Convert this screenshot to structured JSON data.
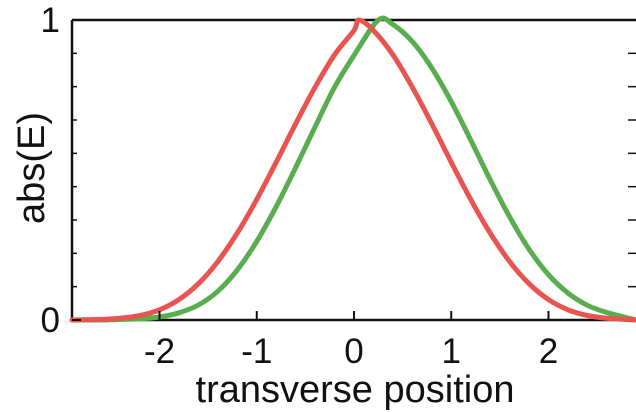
{
  "chart_data": {
    "type": "line",
    "title": "",
    "xlabel": "transverse position",
    "ylabel": "abs(E)",
    "xlim": [
      -2.9,
      2.9
    ],
    "ylim": [
      0,
      1
    ],
    "x_ticks": [
      -2,
      -1,
      0,
      1,
      2
    ],
    "x_tick_labels": [
      "-2",
      "-1",
      "0",
      "1",
      "2"
    ],
    "y_ticks": [
      0,
      1
    ],
    "y_tick_labels": [
      "0",
      "1"
    ],
    "grid": false,
    "legend": "none",
    "series": [
      {
        "color": "#e8544f",
        "x": [
          -2.9,
          -2.6,
          -2.4,
          -2.2,
          -2.0,
          -1.8,
          -1.6,
          -1.4,
          -1.2,
          -1.0,
          -0.8,
          -0.6,
          -0.4,
          -0.2,
          0.0,
          0.05,
          0.2,
          0.4,
          0.6,
          0.8,
          1.0,
          1.2,
          1.4,
          1.6,
          1.8,
          2.0,
          2.2,
          2.4,
          2.6,
          2.9
        ],
        "y": [
          0.0,
          0.002,
          0.006,
          0.015,
          0.034,
          0.068,
          0.121,
          0.195,
          0.29,
          0.402,
          0.526,
          0.654,
          0.776,
          0.884,
          0.965,
          1.0,
          0.965,
          0.884,
          0.776,
          0.654,
          0.526,
          0.402,
          0.29,
          0.195,
          0.121,
          0.068,
          0.034,
          0.015,
          0.006,
          0.0
        ]
      },
      {
        "color": "#5aad4e",
        "x": [
          -2.9,
          -2.6,
          -2.4,
          -2.2,
          -2.0,
          -1.8,
          -1.6,
          -1.4,
          -1.2,
          -1.0,
          -0.8,
          -0.6,
          -0.4,
          -0.2,
          0.0,
          0.25,
          0.4,
          0.6,
          0.8,
          1.0,
          1.2,
          1.4,
          1.6,
          1.8,
          2.0,
          2.2,
          2.4,
          2.6,
          2.9
        ],
        "y": [
          0.0,
          0.0,
          0.002,
          0.004,
          0.01,
          0.024,
          0.05,
          0.096,
          0.167,
          0.262,
          0.378,
          0.508,
          0.644,
          0.776,
          0.882,
          1.0,
          0.985,
          0.928,
          0.84,
          0.728,
          0.6,
          0.468,
          0.344,
          0.236,
          0.151,
          0.09,
          0.049,
          0.025,
          0.0
        ]
      }
    ]
  }
}
